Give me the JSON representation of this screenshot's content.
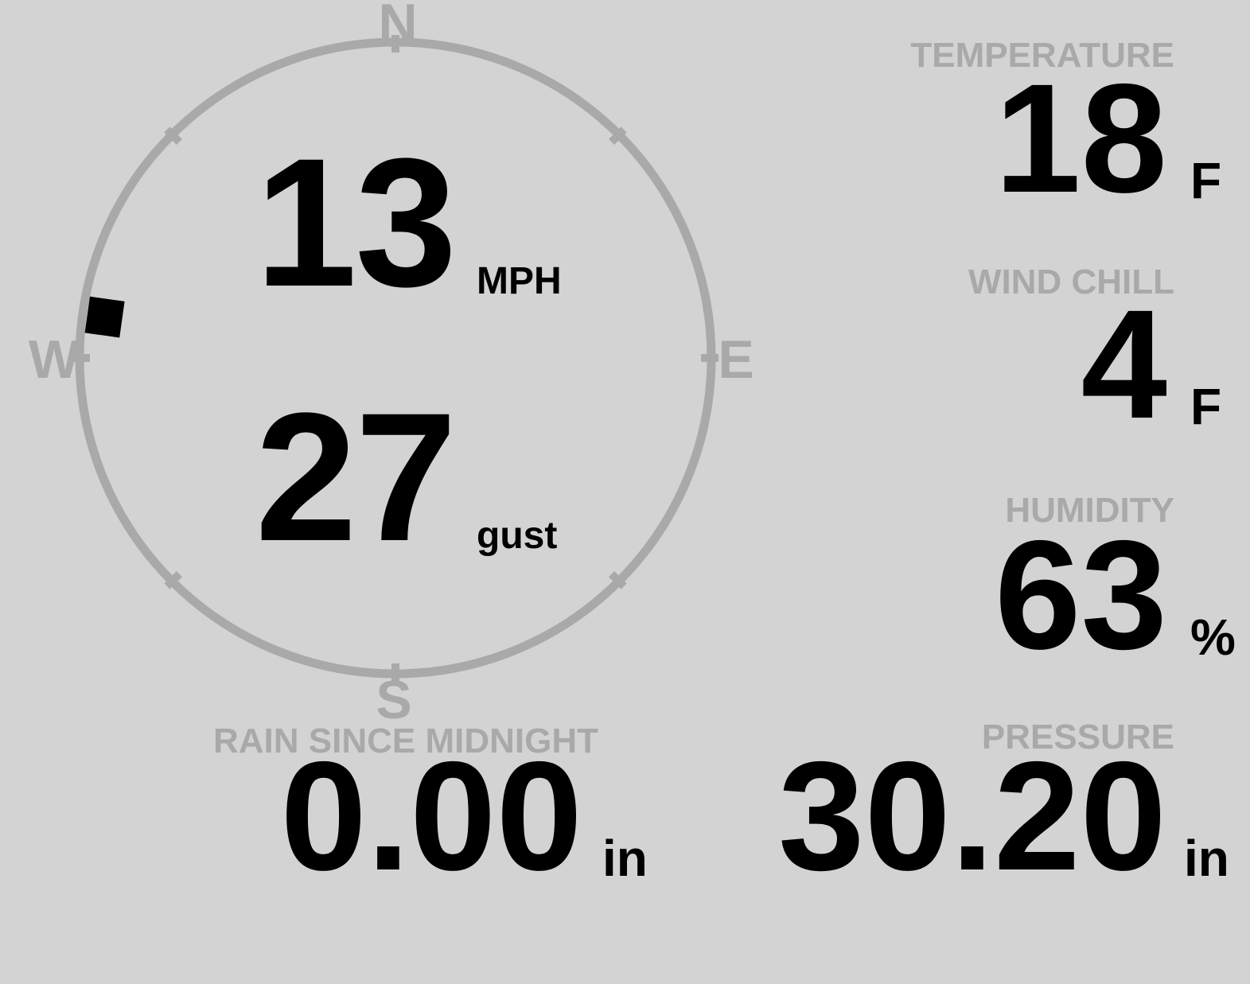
{
  "display": {
    "background": "#d3d3d3",
    "muted_color": "#a9a9a9",
    "text_color": "#000000"
  },
  "compass": {
    "labels": {
      "north": "N",
      "east": "E",
      "south": "S",
      "west": "W"
    },
    "wind_direction_deg": 278,
    "ring_color": "#a9a9a9",
    "marker_color": "#000000"
  },
  "wind": {
    "speed_value": "13",
    "speed_unit": "MPH",
    "gust_value": "27",
    "gust_unit": "gust"
  },
  "stats": {
    "temperature": {
      "label": "TEMPERATURE",
      "value": "18",
      "unit": "F"
    },
    "wind_chill": {
      "label": "WIND CHILL",
      "value": "4",
      "unit": "F"
    },
    "humidity": {
      "label": "HUMIDITY",
      "value": "63",
      "unit": "%"
    },
    "rain_since_midnight": {
      "label": "RAIN SINCE MIDNIGHT",
      "value": "0.00",
      "unit": "in"
    },
    "pressure": {
      "label": "PRESSURE",
      "value": "30.20",
      "unit": "in"
    }
  }
}
